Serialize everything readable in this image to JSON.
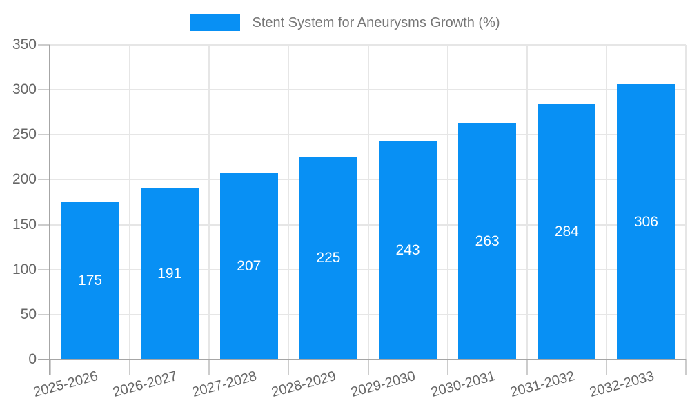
{
  "legend": {
    "label": "Stent System for Aneurysms Growth (%)"
  },
  "chart_data": {
    "type": "bar",
    "title": "Stent System for Aneurysms Growth (%)",
    "categories": [
      "2025-2026",
      "2026-2027",
      "2027-2028",
      "2028-2029",
      "2029-2030",
      "2030-2031",
      "2031-2032",
      "2032-2033"
    ],
    "values": [
      175,
      191,
      207,
      225,
      243,
      263,
      284,
      306
    ],
    "value_labels": [
      "175",
      "191",
      "207",
      "225",
      "243",
      "263",
      "284",
      "306"
    ],
    "ytick_labels": [
      "0",
      "50",
      "100",
      "150",
      "200",
      "250",
      "300",
      "350"
    ],
    "yticks": [
      0,
      50,
      100,
      150,
      200,
      250,
      300,
      350
    ],
    "ylim": [
      0,
      350
    ],
    "xlabel": "",
    "ylabel": "",
    "grid": true,
    "legend_position": "top",
    "value_label_position": "center-of-bar",
    "colors": {
      "bar": "#0890f4",
      "grid": "#e6e6e6",
      "axis": "#a6a6a6",
      "tick": "#cccccc",
      "axis_label_text": "#666666",
      "legend_text": "#757575",
      "value_label_text": "#ffffff",
      "background": "#ffffff"
    }
  }
}
